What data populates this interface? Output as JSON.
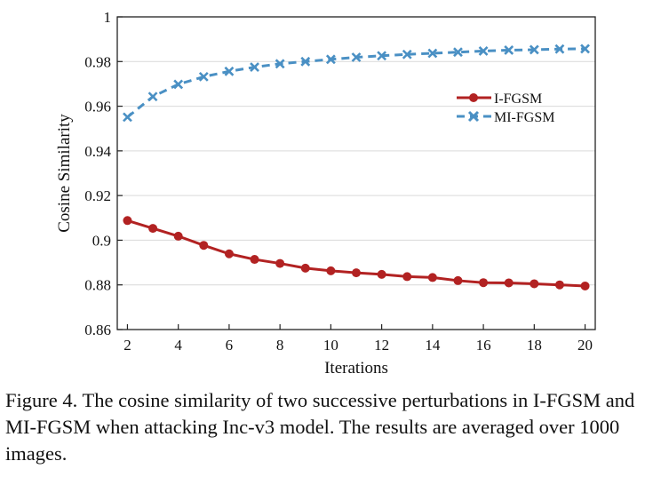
{
  "chart_data": {
    "type": "line",
    "xlabel": "Iterations",
    "ylabel": "Cosine Similarity",
    "xlim": [
      1.6,
      20.4
    ],
    "ylim": [
      0.86,
      1.0
    ],
    "xticks": [
      2,
      4,
      6,
      8,
      10,
      12,
      14,
      16,
      18,
      20
    ],
    "yticks": [
      0.86,
      0.88,
      0.9,
      0.92,
      0.94,
      0.96,
      0.98,
      1.0
    ],
    "xtick_labels": [
      "2",
      "4",
      "6",
      "8",
      "10",
      "12",
      "14",
      "16",
      "18",
      "20"
    ],
    "ytick_labels": [
      "0.86",
      "0.88",
      "0.9",
      "0.92",
      "0.94",
      "0.96",
      "0.98",
      "1"
    ],
    "grid": "horizontal",
    "legend_position": "right",
    "x": [
      2,
      3,
      4,
      5,
      6,
      7,
      8,
      9,
      10,
      11,
      12,
      13,
      14,
      15,
      16,
      17,
      18,
      19,
      20
    ],
    "series": [
      {
        "name": "I-FGSM",
        "color": "#b22222",
        "marker": "circle",
        "line": "solid",
        "values": [
          0.9088,
          0.9053,
          0.9018,
          0.8977,
          0.8939,
          0.8914,
          0.8896,
          0.8875,
          0.8863,
          0.8854,
          0.8847,
          0.8837,
          0.8833,
          0.8819,
          0.881,
          0.8809,
          0.8805,
          0.88,
          0.8795
        ]
      },
      {
        "name": "MI-FGSM",
        "color": "#4a90c4",
        "marker": "x",
        "line": "dashed",
        "values": [
          0.9551,
          0.9643,
          0.9698,
          0.9732,
          0.9756,
          0.9775,
          0.979,
          0.98,
          0.981,
          0.9819,
          0.9826,
          0.9832,
          0.9837,
          0.9842,
          0.9847,
          0.9851,
          0.9853,
          0.9856,
          0.9857
        ]
      }
    ]
  },
  "caption": "Figure 4. The cosine similarity of two successive perturbations in I-FGSM and MI-FGSM when attacking Inc-v3 model. The results are averaged over 1000 images."
}
